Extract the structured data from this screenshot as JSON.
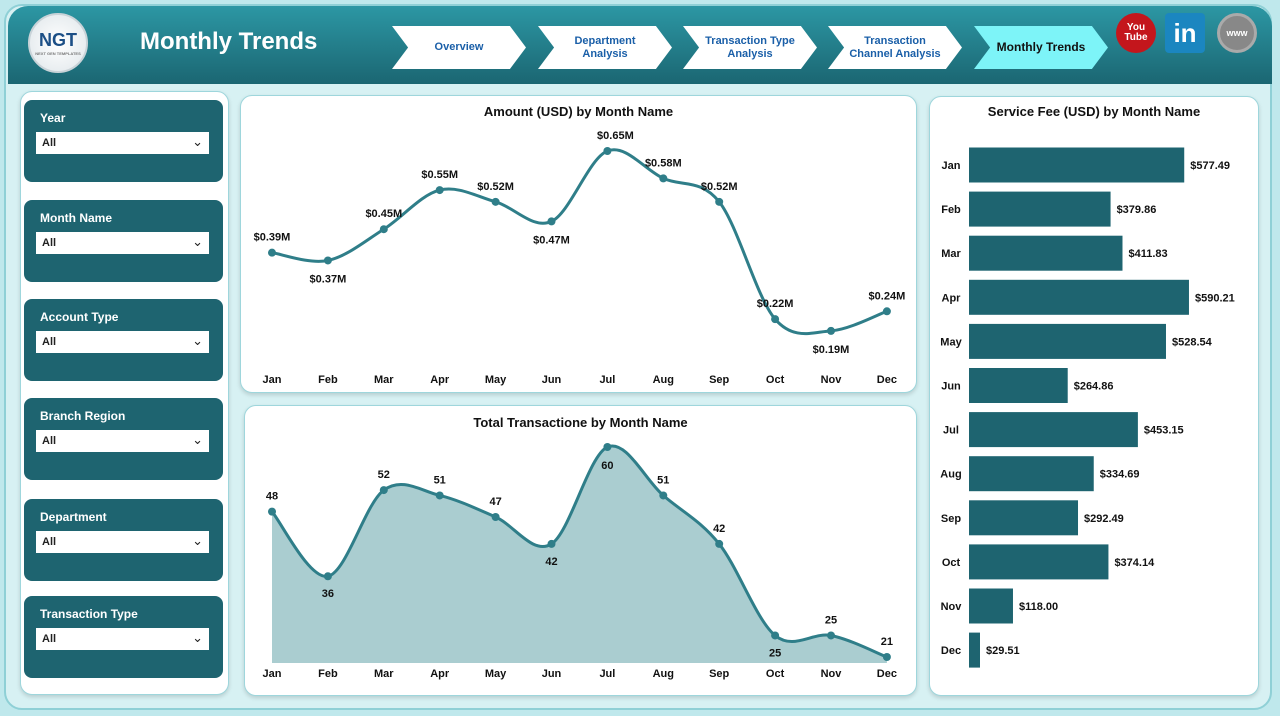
{
  "header": {
    "logo": "NGT",
    "logo_sub": "NEXT GEN TEMPLATES",
    "title": "Monthly Trends",
    "nav": [
      {
        "label": "Overview"
      },
      {
        "label": "Department Analysis"
      },
      {
        "label": "Transaction Type Analysis"
      },
      {
        "label": "Transaction Channel Analysis"
      },
      {
        "label": "Monthly Trends",
        "active": true
      }
    ],
    "social": [
      {
        "icon": "youtube-icon",
        "label": "You Tube",
        "color": "#c4161c"
      },
      {
        "icon": "linkedin-icon",
        "label": "in",
        "color": "#1b86c0"
      },
      {
        "icon": "globe-icon",
        "label": "www",
        "color": "#888888"
      }
    ]
  },
  "filters": [
    {
      "label": "Year",
      "value": "All"
    },
    {
      "label": "Month Name",
      "value": "All"
    },
    {
      "label": "Account Type",
      "value": "All"
    },
    {
      "label": "Branch Region",
      "value": "All"
    },
    {
      "label": "Department",
      "value": "All"
    },
    {
      "label": "Transaction Type",
      "value": "All"
    }
  ],
  "colors": {
    "accent": "#1e6470",
    "line": "#2f7e89",
    "area": "#aacdd0"
  },
  "chart_data": [
    {
      "type": "line",
      "title": "Amount (USD) by Month Name",
      "categories": [
        "Jan",
        "Feb",
        "Mar",
        "Apr",
        "May",
        "Jun",
        "Jul",
        "Aug",
        "Sep",
        "Oct",
        "Nov",
        "Dec"
      ],
      "values": [
        0.39,
        0.37,
        0.45,
        0.55,
        0.52,
        0.47,
        0.65,
        0.58,
        0.52,
        0.22,
        0.19,
        0.24
      ],
      "data_labels": [
        "$0.39M",
        "$0.37M",
        "$0.45M",
        "$0.55M",
        "$0.52M",
        "$0.47M",
        "$0.65M",
        "$0.58M",
        "$0.52M",
        "$0.22M",
        "$0.19M",
        "$0.24M"
      ],
      "unit": "USD millions"
    },
    {
      "type": "area",
      "title": "Total Transactione by Month Name",
      "categories": [
        "Jan",
        "Feb",
        "Mar",
        "Apr",
        "May",
        "Jun",
        "Jul",
        "Aug",
        "Sep",
        "Oct",
        "Nov",
        "Dec"
      ],
      "values": [
        48,
        36,
        52,
        51,
        47,
        42,
        60,
        51,
        42,
        25,
        25,
        21
      ]
    },
    {
      "type": "bar",
      "orientation": "horizontal",
      "title": "Service Fee (USD) by Month Name",
      "categories": [
        "Jan",
        "Feb",
        "Mar",
        "Apr",
        "May",
        "Jun",
        "Jul",
        "Aug",
        "Sep",
        "Oct",
        "Nov",
        "Dec"
      ],
      "values": [
        577.49,
        379.86,
        411.83,
        590.21,
        528.54,
        264.86,
        453.15,
        334.69,
        292.49,
        374.14,
        118.0,
        29.51
      ],
      "data_labels": [
        "$577.49",
        "$379.86",
        "$411.83",
        "$590.21",
        "$528.54",
        "$264.86",
        "$453.15",
        "$334.69",
        "$292.49",
        "$374.14",
        "$118.00",
        "$29.51"
      ]
    }
  ]
}
